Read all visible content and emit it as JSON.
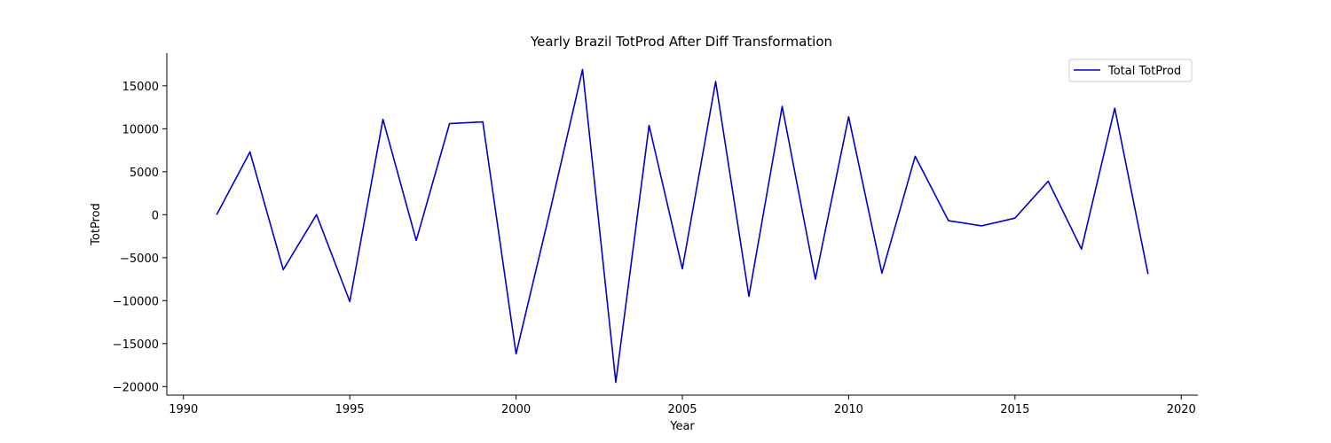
{
  "chart_data": {
    "type": "line",
    "title": "Yearly Brazil TotProd After Diff Transformation",
    "xlabel": "Year",
    "ylabel": "TotProd",
    "xlim": [
      1989.5,
      2020.5
    ],
    "ylim": [
      -21000,
      18800
    ],
    "x_ticks": [
      1990,
      1995,
      2000,
      2005,
      2010,
      2015,
      2020
    ],
    "x_tick_labels": [
      "1990",
      "1995",
      "2000",
      "2005",
      "2010",
      "2015",
      "2020"
    ],
    "y_ticks": [
      -20000,
      -15000,
      -10000,
      -5000,
      0,
      5000,
      10000,
      15000
    ],
    "y_tick_labels": [
      "−20000",
      "−15000",
      "−10000",
      "−5000",
      "0",
      "5000",
      "10000",
      "15000"
    ],
    "grid": false,
    "legend_position": "top-right",
    "series": [
      {
        "name": "Total TotProd",
        "color": "#0000cc",
        "x": [
          1991,
          1992,
          1993,
          1994,
          1995,
          1996,
          1997,
          1998,
          1999,
          2000,
          2001,
          2002,
          2003,
          2004,
          2005,
          2006,
          2007,
          2008,
          2009,
          2010,
          2011,
          2012,
          2013,
          2014,
          2015,
          2016,
          2017,
          2018,
          2019
        ],
        "y": [
          0,
          7300,
          -6400,
          0,
          -10100,
          11100,
          -3000,
          10600,
          10800,
          -16200,
          100,
          16900,
          -19500,
          10400,
          -6300,
          15500,
          -9500,
          12600,
          -7500,
          11400,
          -6800,
          6800,
          -700,
          -1300,
          -400,
          3900,
          -4000,
          12400,
          -6900
        ]
      }
    ]
  }
}
